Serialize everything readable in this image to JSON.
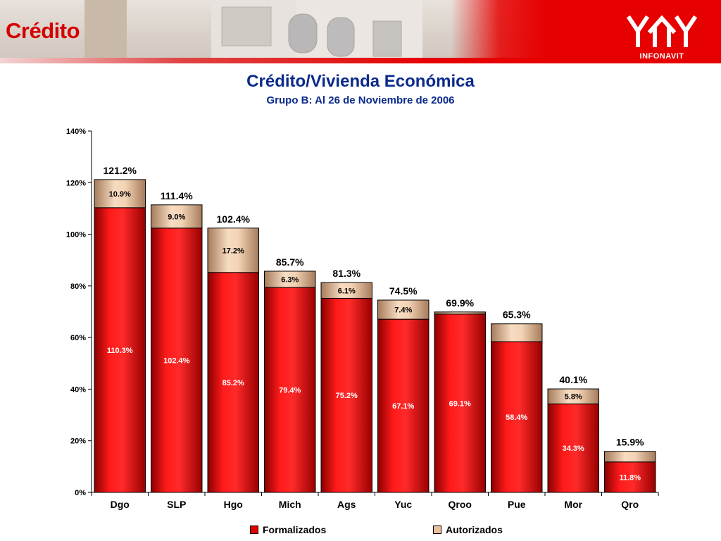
{
  "header": {
    "section_title": "Crédito",
    "logo_text": "INFONAVIT"
  },
  "colors": {
    "formalizados": "#e00000",
    "autorizados": "#e8c09a",
    "title": "#0a2a8c",
    "accent_red": "#d40000"
  },
  "chart_data": {
    "type": "bar",
    "stacked": true,
    "title": "Crédito/Vivienda Económica",
    "subtitle": "Grupo B: Al 26 de Noviembre de 2006",
    "categories": [
      "Dgo",
      "SLP",
      "Hgo",
      "Mich",
      "Ags",
      "Yuc",
      "Qroo",
      "Pue",
      "Mor",
      "Qro"
    ],
    "series": [
      {
        "name": "Formalizados",
        "values": [
          110.3,
          102.4,
          85.2,
          79.4,
          75.2,
          67.1,
          69.1,
          58.4,
          34.3,
          11.8
        ],
        "labels": [
          "110.3%",
          "102.4%",
          "85.2%",
          "79.4%",
          "75.2%",
          "67.1%",
          "69.1%",
          "58.4%",
          "34.3%",
          "11.8%"
        ]
      },
      {
        "name": "Autorizados",
        "values": [
          10.9,
          9.0,
          17.2,
          6.3,
          6.1,
          7.4,
          0.8,
          6.9,
          5.8,
          4.1
        ],
        "labels": [
          "10.9%",
          "9.0%",
          "17.2%",
          "6.3%",
          "6.1%",
          "7.4%",
          "",
          "",
          "5.8%",
          ""
        ]
      }
    ],
    "totals": [
      "121.2%",
      "111.4%",
      "102.4%",
      "85.7%",
      "81.3%",
      "74.5%",
      "69.9%",
      "65.3%",
      "40.1%",
      "15.9%"
    ],
    "total_values": [
      121.2,
      111.4,
      102.4,
      85.7,
      81.3,
      74.5,
      69.9,
      65.3,
      40.1,
      15.9
    ],
    "ylim": [
      0,
      140
    ],
    "yticks": [
      "0%",
      "20%",
      "40%",
      "60%",
      "80%",
      "100%",
      "120%",
      "140%"
    ],
    "ytick_values": [
      0,
      20,
      40,
      60,
      80,
      100,
      120,
      140
    ],
    "grid": false,
    "legend": "bottom"
  }
}
